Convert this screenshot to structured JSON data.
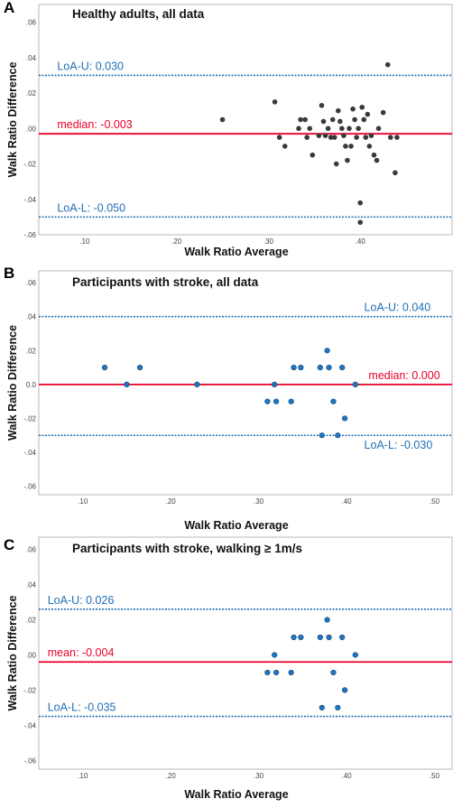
{
  "chart_data": [
    {
      "type": "scatter",
      "panel_letter": "A",
      "title": "Healthy adults, all data",
      "xlabel": "Walk Ratio Average",
      "ylabel": "Walk Ratio Difference",
      "xlim": [
        0.05,
        0.5
      ],
      "ylim": [
        -0.06,
        0.07
      ],
      "x_ticks": [
        ".10",
        ".20",
        ".30",
        ".40"
      ],
      "y_ticks": [
        ".06",
        ".04",
        ".02",
        ".00",
        "-.02",
        "-.04",
        "-.06"
      ],
      "point_color": "#3a3a3a",
      "points": [
        {
          "x": 0.25,
          "y": 0.005
        },
        {
          "x": 0.307,
          "y": 0.015
        },
        {
          "x": 0.312,
          "y": -0.005
        },
        {
          "x": 0.318,
          "y": -0.01
        },
        {
          "x": 0.333,
          "y": 0.0
        },
        {
          "x": 0.335,
          "y": 0.005
        },
        {
          "x": 0.34,
          "y": 0.005
        },
        {
          "x": 0.342,
          "y": -0.005
        },
        {
          "x": 0.345,
          "y": 0.0
        },
        {
          "x": 0.348,
          "y": -0.015
        },
        {
          "x": 0.355,
          "y": -0.004
        },
        {
          "x": 0.358,
          "y": 0.013
        },
        {
          "x": 0.36,
          "y": 0.004
        },
        {
          "x": 0.362,
          "y": -0.004
        },
        {
          "x": 0.365,
          "y": 0.0
        },
        {
          "x": 0.368,
          "y": -0.005
        },
        {
          "x": 0.37,
          "y": 0.005
        },
        {
          "x": 0.372,
          "y": -0.005
        },
        {
          "x": 0.374,
          "y": -0.02
        },
        {
          "x": 0.376,
          "y": 0.01
        },
        {
          "x": 0.378,
          "y": 0.004
        },
        {
          "x": 0.38,
          "y": 0.0
        },
        {
          "x": 0.382,
          "y": -0.004
        },
        {
          "x": 0.384,
          "y": -0.01
        },
        {
          "x": 0.386,
          "y": -0.018
        },
        {
          "x": 0.388,
          "y": 0.0
        },
        {
          "x": 0.39,
          "y": -0.01
        },
        {
          "x": 0.392,
          "y": 0.011
        },
        {
          "x": 0.394,
          "y": 0.005
        },
        {
          "x": 0.396,
          "y": -0.005
        },
        {
          "x": 0.398,
          "y": 0.0
        },
        {
          "x": 0.4,
          "y": -0.042
        },
        {
          "x": 0.4,
          "y": -0.053
        },
        {
          "x": 0.402,
          "y": 0.012
        },
        {
          "x": 0.404,
          "y": 0.005
        },
        {
          "x": 0.406,
          "y": -0.005
        },
        {
          "x": 0.408,
          "y": 0.008
        },
        {
          "x": 0.41,
          "y": -0.01
        },
        {
          "x": 0.412,
          "y": -0.004
        },
        {
          "x": 0.415,
          "y": -0.015
        },
        {
          "x": 0.418,
          "y": -0.018
        },
        {
          "x": 0.42,
          "y": 0.0
        },
        {
          "x": 0.425,
          "y": 0.009
        },
        {
          "x": 0.43,
          "y": 0.036
        },
        {
          "x": 0.433,
          "y": -0.005
        },
        {
          "x": 0.438,
          "y": -0.025
        },
        {
          "x": 0.44,
          "y": -0.005
        }
      ],
      "lines": [
        {
          "label": "LoA-U: 0.030",
          "value": 0.03,
          "color": "#1f6fb5",
          "style": "dotted",
          "label_x": 0.07,
          "label_side": "above"
        },
        {
          "label": "median: -0.003",
          "value": -0.003,
          "color": "#e8002a",
          "style": "solid",
          "label_x": 0.07,
          "label_side": "above"
        },
        {
          "label": "LoA-L: -0.050",
          "value": -0.05,
          "color": "#1f6fb5",
          "style": "dotted",
          "label_x": 0.07,
          "label_side": "above"
        }
      ]
    },
    {
      "type": "scatter",
      "panel_letter": "B",
      "title": "Participants with stroke, all data",
      "xlabel": "Walk Ratio Average",
      "ylabel": "Walk Ratio Difference",
      "xlim": [
        0.05,
        0.52
      ],
      "ylim": [
        -0.065,
        0.067
      ],
      "x_ticks": [
        ".10",
        ".20",
        ".30",
        ".40",
        ".50"
      ],
      "y_ticks": [
        ".06",
        ".04",
        ".02",
        "0.0",
        "-.02",
        "-.04",
        "-.06"
      ],
      "point_color": "#1f77c4",
      "points": [
        {
          "x": 0.125,
          "y": 0.01
        },
        {
          "x": 0.15,
          "y": 0.0
        },
        {
          "x": 0.165,
          "y": 0.01
        },
        {
          "x": 0.23,
          "y": 0.0
        },
        {
          "x": 0.31,
          "y": -0.01
        },
        {
          "x": 0.318,
          "y": 0.0
        },
        {
          "x": 0.32,
          "y": -0.01
        },
        {
          "x": 0.337,
          "y": -0.01
        },
        {
          "x": 0.34,
          "y": 0.01
        },
        {
          "x": 0.348,
          "y": 0.01
        },
        {
          "x": 0.37,
          "y": 0.01
        },
        {
          "x": 0.372,
          "y": -0.03
        },
        {
          "x": 0.378,
          "y": 0.02
        },
        {
          "x": 0.38,
          "y": 0.01
        },
        {
          "x": 0.385,
          "y": -0.01
        },
        {
          "x": 0.39,
          "y": -0.03
        },
        {
          "x": 0.395,
          "y": 0.01
        },
        {
          "x": 0.398,
          "y": -0.02
        },
        {
          "x": 0.41,
          "y": 0.0
        }
      ],
      "lines": [
        {
          "label": "LoA-U: 0.040",
          "value": 0.04,
          "color": "#1f6fb5",
          "style": "dotted",
          "label_x": 0.42,
          "label_side": "above"
        },
        {
          "label": "median: 0.000",
          "value": 0.0,
          "color": "#e8002a",
          "style": "solid",
          "label_x": 0.425,
          "label_side": "above"
        },
        {
          "label": "LoA-L: -0.030",
          "value": -0.03,
          "color": "#1f6fb5",
          "style": "dotted",
          "label_x": 0.42,
          "label_side": "below"
        }
      ]
    },
    {
      "type": "scatter",
      "panel_letter": "C",
      "title": "Participants with stroke, walking ≥ 1m/s",
      "xlabel": "Walk Ratio Average",
      "ylabel": "Walk Ratio Difference",
      "xlim": [
        0.05,
        0.52
      ],
      "ylim": [
        -0.065,
        0.067
      ],
      "x_ticks": [
        ".10",
        ".20",
        ".30",
        ".40",
        ".50"
      ],
      "y_ticks": [
        ".06",
        ".04",
        ".02",
        ".00",
        "-.02",
        "-.04",
        "-.06"
      ],
      "point_color": "#1f77c4",
      "points": [
        {
          "x": 0.31,
          "y": -0.01
        },
        {
          "x": 0.318,
          "y": 0.0
        },
        {
          "x": 0.32,
          "y": -0.01
        },
        {
          "x": 0.337,
          "y": -0.01
        },
        {
          "x": 0.34,
          "y": 0.01
        },
        {
          "x": 0.348,
          "y": 0.01
        },
        {
          "x": 0.37,
          "y": 0.01
        },
        {
          "x": 0.372,
          "y": -0.03
        },
        {
          "x": 0.378,
          "y": 0.02
        },
        {
          "x": 0.38,
          "y": 0.01
        },
        {
          "x": 0.385,
          "y": -0.01
        },
        {
          "x": 0.39,
          "y": -0.03
        },
        {
          "x": 0.395,
          "y": 0.01
        },
        {
          "x": 0.398,
          "y": -0.02
        },
        {
          "x": 0.41,
          "y": 0.0
        }
      ],
      "lines": [
        {
          "label": "LoA-U: 0.026",
          "value": 0.026,
          "color": "#1f6fb5",
          "style": "dotted",
          "label_x": 0.06,
          "label_side": "above"
        },
        {
          "label": "mean: -0.004",
          "value": -0.004,
          "color": "#e8002a",
          "style": "solid",
          "label_x": 0.06,
          "label_side": "above"
        },
        {
          "label": "LoA-L: -0.035",
          "value": -0.035,
          "color": "#1f6fb5",
          "style": "dotted",
          "label_x": 0.06,
          "label_side": "above"
        }
      ]
    }
  ]
}
